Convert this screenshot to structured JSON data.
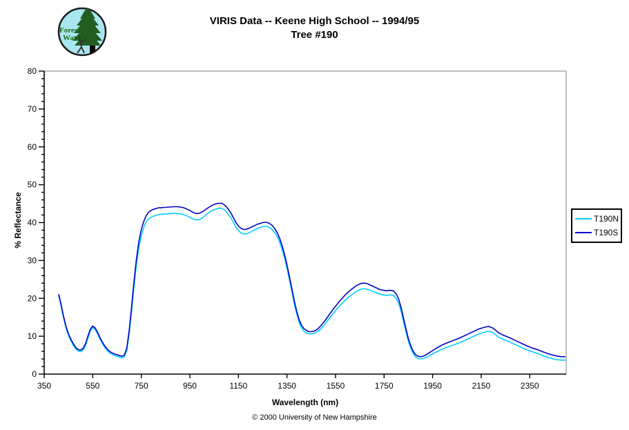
{
  "header": {
    "title_line1": "VIRIS Data -- Keene High School -- 1994/95",
    "title_line2": "Tree #190"
  },
  "logo": {
    "text_line1": "Forest",
    "text_line2": "Watch",
    "bg_color": "#A9E6EF",
    "text_color": "#1d6b1d",
    "tree_color": "#225e22"
  },
  "footer": {
    "copyright": "© 2000 University of New Hampshire"
  },
  "legend": {
    "entries": [
      {
        "label": "T190N",
        "color": "#00CCFF"
      },
      {
        "label": "T190S",
        "color": "#0000C8"
      }
    ]
  },
  "chart_data": {
    "type": "line",
    "title": "VIRIS Data -- Keene High School -- 1994/95",
    "subtitle": "Tree #190",
    "xlabel": "Wavelength (nm)",
    "ylabel": "% Reflectance",
    "xlim": [
      350,
      2500
    ],
    "ylim": [
      0,
      80
    ],
    "x_ticks": [
      350,
      550,
      750,
      950,
      1150,
      1350,
      1550,
      1750,
      1950,
      2150,
      2350
    ],
    "y_ticks": [
      0,
      10,
      20,
      30,
      40,
      50,
      60,
      70,
      80
    ],
    "y_minor_interval": 2,
    "grid": false,
    "legend_position": "right-outside",
    "frame_color": "#999999",
    "axis_color": "#000000",
    "x": [
      410,
      420,
      430,
      440,
      450,
      460,
      470,
      480,
      490,
      500,
      510,
      520,
      530,
      540,
      550,
      560,
      570,
      580,
      590,
      600,
      610,
      620,
      630,
      640,
      650,
      660,
      670,
      680,
      690,
      700,
      710,
      720,
      730,
      740,
      750,
      760,
      770,
      780,
      790,
      800,
      810,
      820,
      830,
      840,
      850,
      860,
      870,
      880,
      890,
      900,
      910,
      920,
      930,
      940,
      950,
      960,
      970,
      980,
      990,
      1000,
      1010,
      1020,
      1030,
      1040,
      1050,
      1060,
      1070,
      1080,
      1090,
      1100,
      1110,
      1120,
      1130,
      1140,
      1150,
      1160,
      1170,
      1180,
      1190,
      1200,
      1210,
      1220,
      1230,
      1240,
      1250,
      1260,
      1270,
      1280,
      1290,
      1300,
      1310,
      1320,
      1330,
      1340,
      1350,
      1360,
      1370,
      1380,
      1390,
      1400,
      1410,
      1420,
      1430,
      1440,
      1450,
      1460,
      1470,
      1480,
      1490,
      1500,
      1510,
      1520,
      1530,
      1540,
      1550,
      1560,
      1570,
      1580,
      1590,
      1600,
      1610,
      1620,
      1630,
      1640,
      1650,
      1660,
      1670,
      1680,
      1690,
      1700,
      1710,
      1720,
      1730,
      1740,
      1750,
      1760,
      1770,
      1780,
      1790,
      1800,
      1810,
      1820,
      1830,
      1840,
      1850,
      1860,
      1870,
      1880,
      1890,
      1900,
      1910,
      1920,
      1930,
      1940,
      1950,
      1960,
      1970,
      1980,
      1990,
      2000,
      2020,
      2040,
      2060,
      2080,
      2100,
      2120,
      2140,
      2160,
      2180,
      2200,
      2220,
      2240,
      2260,
      2280,
      2300,
      2320,
      2340,
      2360,
      2380,
      2400,
      2420,
      2440,
      2460,
      2480,
      2495
    ],
    "series": [
      {
        "name": "T190N",
        "color": "#00CCFF",
        "values": [
          20.7,
          17.9,
          14.8,
          12.2,
          10.2,
          8.8,
          7.6,
          6.6,
          6.1,
          5.9,
          6.3,
          7.5,
          9.5,
          11.4,
          12.3,
          11.8,
          10.6,
          9.2,
          8.0,
          7.0,
          6.2,
          5.6,
          5.2,
          4.9,
          4.7,
          4.5,
          4.3,
          4.5,
          6.2,
          10.6,
          16.6,
          23.1,
          28.9,
          33.4,
          36.6,
          38.7,
          40.2,
          41.0,
          41.4,
          41.7,
          41.9,
          42.1,
          42.2,
          42.2,
          42.3,
          42.3,
          42.4,
          42.4,
          42.4,
          42.4,
          42.3,
          42.2,
          42.0,
          41.7,
          41.4,
          41.0,
          40.8,
          40.7,
          40.8,
          41.2,
          41.7,
          42.2,
          42.7,
          43.1,
          43.4,
          43.6,
          43.8,
          43.8,
          43.5,
          42.9,
          42.1,
          41.1,
          40.0,
          38.8,
          37.9,
          37.3,
          37.0,
          37.0,
          37.2,
          37.5,
          37.9,
          38.2,
          38.5,
          38.7,
          38.9,
          39.0,
          38.9,
          38.6,
          38.1,
          37.3,
          36.3,
          34.8,
          32.9,
          30.7,
          28.0,
          24.9,
          21.8,
          18.6,
          15.9,
          13.7,
          12.2,
          11.3,
          10.8,
          10.6,
          10.6,
          10.7,
          11.0,
          11.4,
          12.0,
          12.7,
          13.5,
          14.3,
          15.2,
          16.0,
          16.8,
          17.5,
          18.2,
          18.9,
          19.5,
          20.1,
          20.6,
          21.1,
          21.6,
          22.0,
          22.3,
          22.5,
          22.5,
          22.4,
          22.2,
          21.9,
          21.7,
          21.4,
          21.2,
          21.0,
          20.9,
          20.8,
          20.9,
          20.9,
          20.7,
          20.0,
          18.7,
          16.6,
          13.9,
          11.2,
          8.7,
          6.8,
          5.4,
          4.5,
          4.1,
          4.0,
          4.1,
          4.3,
          4.6,
          5.0,
          5.3,
          5.7,
          6.0,
          6.3,
          6.6,
          6.9,
          7.3,
          7.8,
          8.3,
          8.8,
          9.4,
          10.0,
          10.6,
          11.0,
          11.3,
          10.9,
          9.8,
          9.2,
          8.7,
          8.1,
          7.5,
          6.9,
          6.4,
          5.9,
          5.5,
          5.0,
          4.5,
          4.1,
          3.8,
          3.7,
          3.7
        ]
      },
      {
        "name": "T190S",
        "color": "#0000C8",
        "values": [
          21.0,
          18.3,
          15.2,
          12.6,
          10.6,
          9.2,
          8.0,
          7.0,
          6.5,
          6.3,
          6.8,
          8.0,
          10.0,
          11.8,
          12.7,
          12.2,
          11.0,
          9.6,
          8.4,
          7.4,
          6.6,
          6.0,
          5.6,
          5.3,
          5.1,
          4.9,
          4.7,
          5.0,
          6.8,
          11.5,
          17.8,
          24.5,
          30.4,
          35.0,
          38.2,
          40.3,
          41.8,
          42.7,
          43.2,
          43.5,
          43.7,
          43.9,
          43.9,
          44.0,
          44.0,
          44.1,
          44.1,
          44.2,
          44.2,
          44.2,
          44.1,
          44.0,
          43.8,
          43.5,
          43.2,
          42.8,
          42.5,
          42.4,
          42.5,
          42.8,
          43.2,
          43.7,
          44.1,
          44.5,
          44.8,
          45.0,
          45.1,
          45.1,
          44.8,
          44.2,
          43.4,
          42.4,
          41.2,
          40.0,
          39.1,
          38.5,
          38.2,
          38.2,
          38.4,
          38.7,
          39.0,
          39.3,
          39.6,
          39.8,
          40.0,
          40.1,
          40.0,
          39.7,
          39.2,
          38.4,
          37.3,
          35.8,
          33.9,
          31.6,
          28.9,
          25.8,
          22.6,
          19.4,
          16.6,
          14.4,
          12.9,
          12.0,
          11.5,
          11.2,
          11.2,
          11.3,
          11.6,
          12.1,
          12.8,
          13.6,
          14.4,
          15.3,
          16.2,
          17.1,
          17.9,
          18.7,
          19.5,
          20.2,
          20.9,
          21.5,
          22.1,
          22.6,
          23.1,
          23.5,
          23.8,
          24.0,
          24.0,
          23.9,
          23.6,
          23.3,
          23.0,
          22.7,
          22.4,
          22.2,
          22.1,
          22.0,
          22.1,
          22.1,
          21.9,
          21.2,
          19.8,
          17.6,
          14.8,
          12.0,
          9.4,
          7.4,
          6.0,
          5.1,
          4.7,
          4.6,
          4.7,
          5.0,
          5.4,
          5.8,
          6.2,
          6.6,
          7.0,
          7.4,
          7.7,
          8.0,
          8.5,
          9.0,
          9.5,
          10.1,
          10.7,
          11.3,
          11.9,
          12.3,
          12.6,
          12.1,
          11.0,
          10.3,
          9.8,
          9.2,
          8.6,
          8.0,
          7.4,
          6.9,
          6.5,
          6.0,
          5.5,
          5.1,
          4.8,
          4.6,
          4.6
        ]
      }
    ]
  }
}
